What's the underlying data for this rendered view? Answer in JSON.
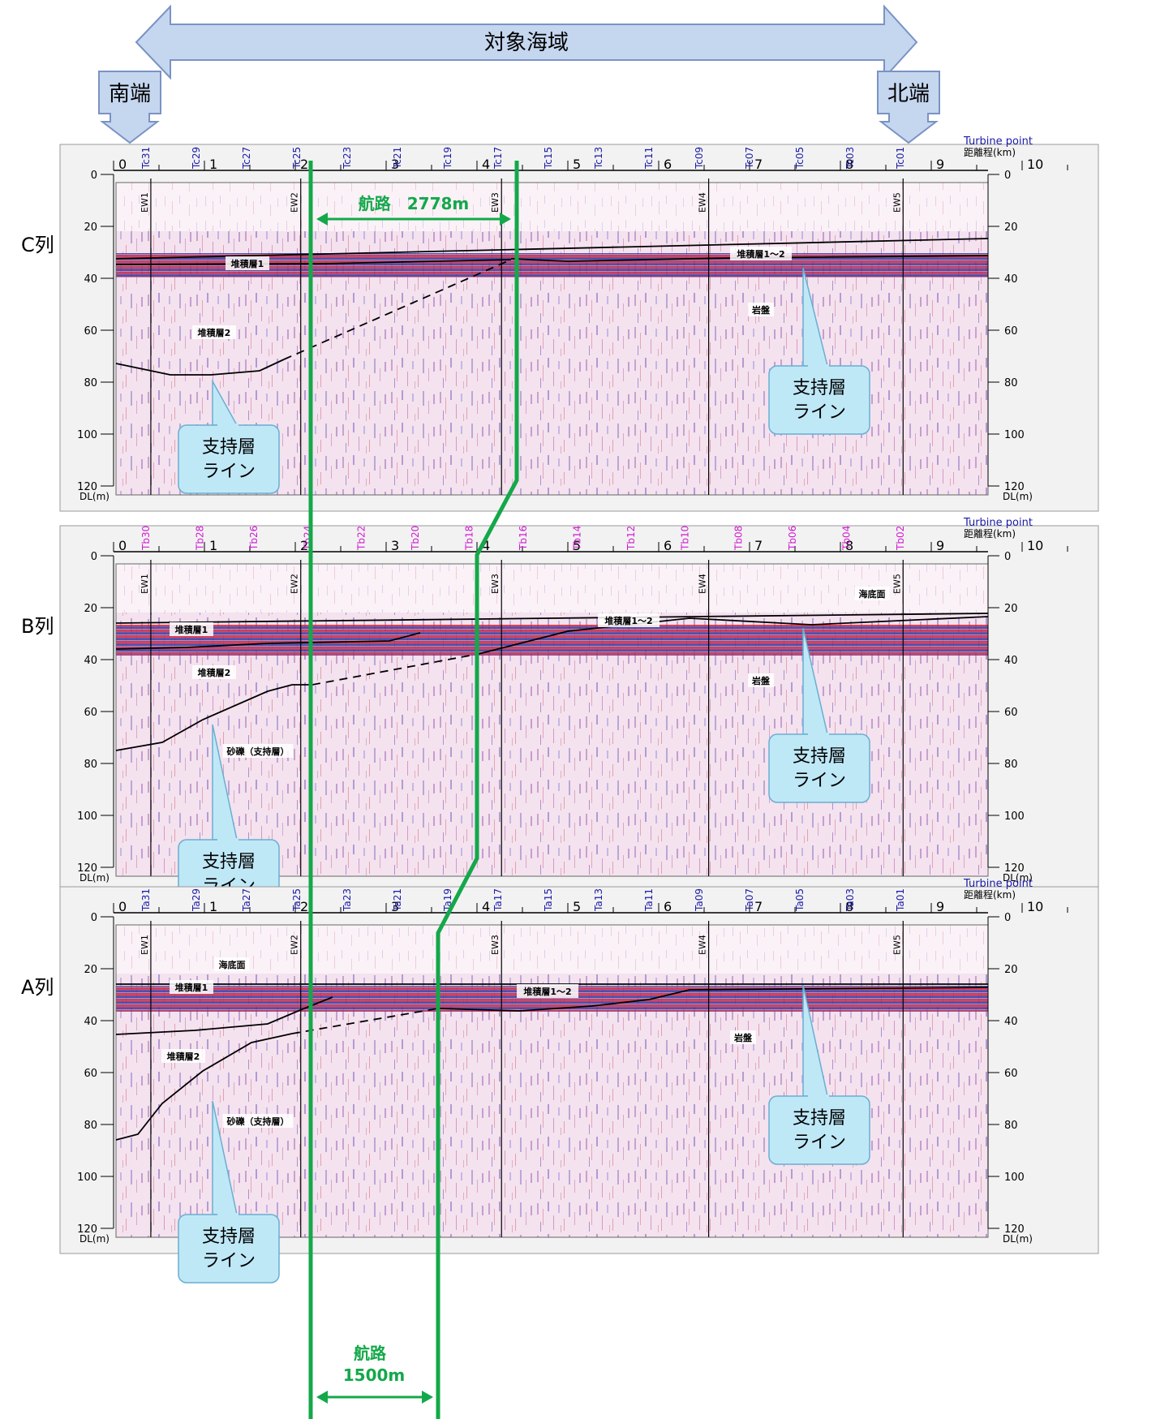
{
  "header": {
    "area_label": "対象海域",
    "south_label": "南端",
    "north_label": "北端"
  },
  "colors": {
    "route": "#14a84a",
    "turbine_blue": "#1a1aa8",
    "turbine_magenta": "#d01ad0",
    "callout_fill": "#bfe8f7",
    "arrow_fill": "#c5d6ef",
    "boundary_line": "#000000"
  },
  "axis": {
    "distance_label": "距離程(km)",
    "turbine_label": "Turbine point",
    "depth_unit_label": "DL(m)",
    "distance_ticks": [
      "0",
      "1",
      "2",
      "3",
      "4",
      "5",
      "6",
      "7",
      "8",
      "9",
      "10"
    ],
    "depth_ticks": [
      "0",
      "20",
      "40",
      "60",
      "80",
      "100",
      "120"
    ]
  },
  "waypoints": [
    "EW1",
    "EW2",
    "EW3",
    "EW4",
    "EW5"
  ],
  "panels": [
    {
      "row_label": "C列",
      "turbines": [
        "Tc31",
        "Tc29",
        "Tc27",
        "Tc25",
        "Tc23",
        "Tc21",
        "Tc19",
        "Tc17",
        "Tc15",
        "Tc13",
        "Tc11",
        "Tc09",
        "Tc07",
        "Tc05",
        "Tc03",
        "Tc01"
      ],
      "turbine_color": "blue",
      "layer_labels": [
        "堆積層1",
        "堆積層1～2",
        "堆積層2",
        "岩盤"
      ],
      "callouts": [
        "支持層\nライン",
        "支持層\nライン"
      ]
    },
    {
      "row_label": "B列",
      "turbines": [
        "Tb30",
        "Tb28",
        "Tb26",
        "Tb24",
        "Tb22",
        "Tb20",
        "Tb18",
        "Tb16",
        "Tb14",
        "Tb12",
        "Tb10",
        "Tb08",
        "Tb06",
        "Tb04",
        "Tb02"
      ],
      "turbine_color": "magenta",
      "layer_labels": [
        "海底面",
        "堆積層1",
        "堆積層1～2",
        "堆積層2",
        "岩盤",
        "砂礫（支持層）"
      ],
      "callouts": [
        "支持層\nライン",
        "支持層\nライン"
      ]
    },
    {
      "row_label": "A列",
      "turbines": [
        "Ta31",
        "Ta29",
        "Ta27",
        "Ta25",
        "Ta23",
        "Ta21",
        "Ta19",
        "Ta17",
        "Ta15",
        "Ta13",
        "Ta11",
        "Ta09",
        "Ta07",
        "Ta05",
        "Ta03",
        "Ta01"
      ],
      "turbine_color": "blue",
      "layer_labels": [
        "海底面",
        "堆積層1",
        "堆積層1～2",
        "堆積層2",
        "岩盤",
        "砂礫（支持層）"
      ],
      "callouts": [
        "支持層\nライン",
        "支持層\nライン"
      ]
    }
  ],
  "route": {
    "top_label": "航路　2778m",
    "bottom_label_1": "航路",
    "bottom_label_2": "1500m"
  }
}
